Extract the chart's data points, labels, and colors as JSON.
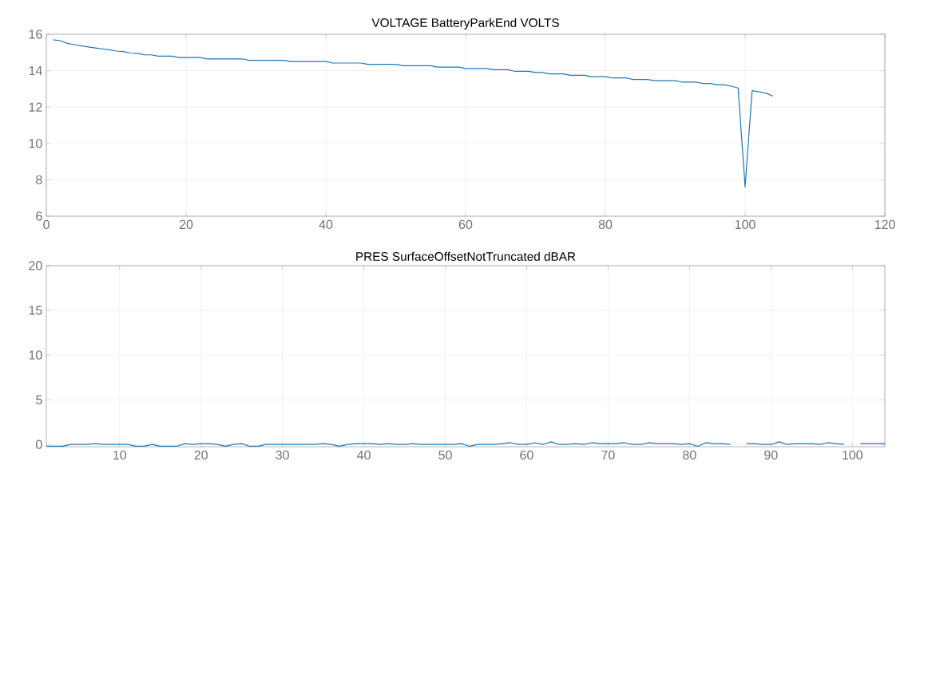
{
  "chart_data": [
    {
      "type": "line",
      "title": "VOLTAGE BatteryParkEnd VOLTS",
      "color": "#1f77b4",
      "grid": true,
      "xlim": [
        0,
        120
      ],
      "xticks": [
        0,
        20,
        40,
        60,
        80,
        100,
        120
      ],
      "ylim": [
        6,
        16
      ],
      "yticks": [
        6,
        8,
        10,
        12,
        14,
        16
      ],
      "x": [
        1,
        2,
        3,
        4,
        5,
        6,
        7,
        8,
        9,
        10,
        11,
        12,
        13,
        14,
        15,
        16,
        17,
        18,
        19,
        20,
        21,
        22,
        23,
        24,
        25,
        26,
        27,
        28,
        29,
        30,
        31,
        32,
        33,
        34,
        35,
        36,
        37,
        38,
        39,
        40,
        41,
        42,
        43,
        44,
        45,
        46,
        47,
        48,
        49,
        50,
        51,
        52,
        53,
        54,
        55,
        56,
        57,
        58,
        59,
        60,
        61,
        62,
        63,
        64,
        65,
        66,
        67,
        68,
        69,
        70,
        71,
        72,
        73,
        74,
        75,
        76,
        77,
        78,
        79,
        80,
        81,
        82,
        83,
        84,
        85,
        86,
        87,
        88,
        89,
        90,
        91,
        92,
        93,
        94,
        95,
        96,
        97,
        98,
        99,
        100,
        101,
        102,
        103,
        104
      ],
      "values": [
        15.7,
        15.65,
        15.5,
        15.43,
        15.37,
        15.3,
        15.25,
        15.2,
        15.15,
        15.08,
        15.05,
        14.97,
        14.95,
        14.88,
        14.87,
        14.8,
        14.8,
        14.8,
        14.72,
        14.72,
        14.72,
        14.72,
        14.65,
        14.65,
        14.65,
        14.65,
        14.65,
        14.65,
        14.57,
        14.57,
        14.57,
        14.57,
        14.57,
        14.57,
        14.5,
        14.5,
        14.5,
        14.5,
        14.5,
        14.5,
        14.42,
        14.42,
        14.42,
        14.42,
        14.42,
        14.35,
        14.35,
        14.35,
        14.35,
        14.35,
        14.27,
        14.27,
        14.27,
        14.27,
        14.27,
        14.2,
        14.2,
        14.2,
        14.2,
        14.12,
        14.12,
        14.12,
        14.12,
        14.05,
        14.05,
        14.05,
        13.97,
        13.97,
        13.97,
        13.9,
        13.9,
        13.82,
        13.82,
        13.82,
        13.75,
        13.75,
        13.75,
        13.67,
        13.67,
        13.67,
        13.6,
        13.6,
        13.6,
        13.52,
        13.52,
        13.52,
        13.45,
        13.45,
        13.45,
        13.45,
        13.37,
        13.37,
        13.37,
        13.3,
        13.3,
        13.22,
        13.22,
        13.15,
        13.05,
        7.6,
        12.9,
        12.84,
        12.76,
        12.6
      ]
    },
    {
      "type": "line",
      "title": "PRES SurfaceOffsetNotTruncated dBAR",
      "color": "#1f77b4",
      "grid": true,
      "xlim": [
        1,
        104
      ],
      "xticks": [
        10,
        20,
        30,
        40,
        50,
        60,
        70,
        80,
        90,
        100
      ],
      "ylim": [
        -0.25,
        20
      ],
      "yticks": [
        0,
        5,
        10,
        15,
        20
      ],
      "x": [
        1,
        2,
        3,
        4,
        5,
        6,
        7,
        8,
        9,
        10,
        11,
        12,
        13,
        14,
        15,
        16,
        17,
        18,
        19,
        20,
        21,
        22,
        23,
        24,
        25,
        26,
        27,
        28,
        29,
        30,
        31,
        32,
        33,
        34,
        35,
        36,
        37,
        38,
        39,
        40,
        41,
        42,
        43,
        44,
        45,
        46,
        47,
        48,
        49,
        50,
        51,
        52,
        53,
        54,
        55,
        56,
        57,
        58,
        59,
        60,
        61,
        62,
        63,
        64,
        65,
        66,
        67,
        68,
        69,
        70,
        71,
        72,
        73,
        74,
        75,
        76,
        77,
        78,
        79,
        80,
        81,
        82,
        83,
        84,
        85,
        86,
        87,
        88,
        89,
        90,
        91,
        92,
        93,
        94,
        95,
        96,
        97,
        98,
        99,
        100,
        101,
        102,
        103,
        104
      ],
      "values": [
        -0.2,
        -0.2,
        -0.2,
        0,
        0,
        0,
        0.1,
        0,
        0,
        0,
        0,
        -0.2,
        -0.2,
        0,
        -0.2,
        -0.2,
        -0.2,
        0.1,
        0,
        0.1,
        0.1,
        0,
        -0.2,
        0,
        0.1,
        -0.2,
        -0.2,
        0,
        0,
        0,
        0,
        0,
        0,
        0,
        0.1,
        0,
        -0.2,
        0,
        0.1,
        0.1,
        0.1,
        0,
        0.1,
        0,
        0,
        0.1,
        0,
        0,
        0,
        0,
        0,
        0.1,
        -0.2,
        0,
        0,
        0,
        0.1,
        0.2,
        0,
        0,
        0.2,
        0,
        0.3,
        0,
        0,
        0.1,
        0,
        0.2,
        0.1,
        0.1,
        0.1,
        0.2,
        0,
        0,
        0.2,
        0.1,
        0.1,
        0.1,
        0,
        0.1,
        -0.2,
        0.2,
        0.1,
        0.1,
        0,
        null,
        0.1,
        0.1,
        0,
        0,
        0.3,
        0,
        0.1,
        0.1,
        0.1,
        0,
        0.2,
        0.1,
        0,
        null,
        0.1,
        0.1,
        0.1,
        0.1
      ]
    }
  ]
}
